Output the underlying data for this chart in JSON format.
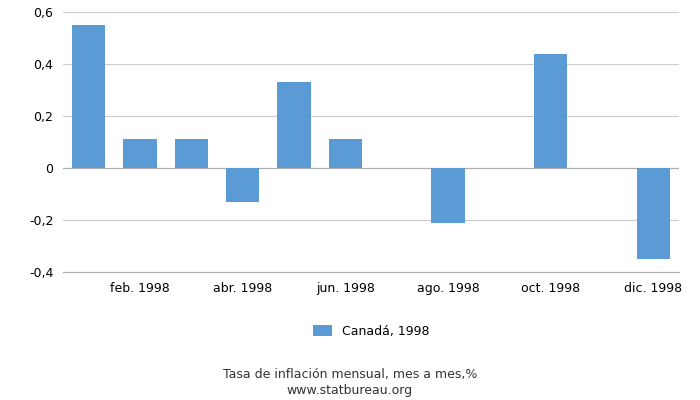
{
  "months": [
    1,
    2,
    3,
    4,
    5,
    6,
    7,
    8,
    9,
    10,
    11,
    12
  ],
  "values": [
    0.55,
    0.11,
    0.11,
    -0.13,
    0.33,
    0.11,
    0.0,
    -0.21,
    0.0,
    0.44,
    0.0,
    -0.35
  ],
  "bar_color": "#5b9bd5",
  "xlim": [
    0.5,
    12.5
  ],
  "ylim": [
    -0.4,
    0.6
  ],
  "yticks": [
    -0.4,
    -0.2,
    0.0,
    0.2,
    0.4,
    0.6
  ],
  "xtick_positions": [
    2,
    4,
    6,
    8,
    10,
    12
  ],
  "xtick_labels": [
    "feb. 1998",
    "abr. 1998",
    "jun. 1998",
    "ago. 1998",
    "oct. 1998",
    "dic. 1998"
  ],
  "legend_label": "Canadá, 1998",
  "footnote_line1": "Tasa de inflación mensual, mes a mes,%",
  "footnote_line2": "www.statbureau.org",
  "background_color": "#ffffff",
  "grid_color": "#cccccc",
  "bar_width": 0.65,
  "tick_fontsize": 9,
  "legend_fontsize": 9,
  "footnote_fontsize": 9
}
